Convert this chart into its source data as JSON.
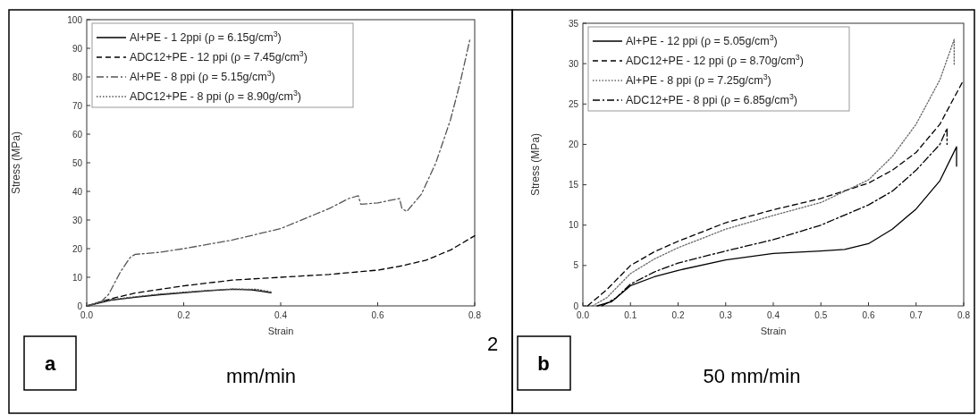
{
  "chart_data": [
    {
      "type": "line",
      "xlabel": "Strain",
      "ylabel": "Stress (MPa)",
      "xlim": [
        0,
        0.8
      ],
      "ylim": [
        0,
        100
      ],
      "xticks": [
        {
          "value": 0,
          "label": "0.0"
        },
        {
          "value": 0.2,
          "label": "0.2"
        },
        {
          "value": 0.4,
          "label": "0.4"
        },
        {
          "value": 0.6,
          "label": "0.6"
        },
        {
          "value": 0.8,
          "label": "0.8"
        }
      ],
      "yticks": [
        0,
        10,
        20,
        30,
        40,
        50,
        60,
        70,
        80,
        90,
        100
      ],
      "grid": false,
      "legend": "top left",
      "marker": "none",
      "annotations": [
        "a",
        "2",
        "mm/min"
      ],
      "series": [
        {
          "name": "Al+PE - 1 2ppi (ρ = 6.15g/cm$^{3}$)",
          "color": "#000000",
          "line_style": "solid",
          "x": [
            0,
            0.05,
            0.1,
            0.15,
            0.2,
            0.25,
            0.3,
            0.34,
            0.36,
            0.38
          ],
          "values": [
            0,
            2,
            3,
            3.9,
            4.6,
            5.3,
            5.8,
            5.6,
            5.1,
            4.6
          ]
        },
        {
          "name": "ADC12+PE - 12 ppi (ρ = 7.45g/cm$^{3}$)",
          "color": "#000000",
          "line_style": "dashed",
          "x": [
            0,
            0.05,
            0.1,
            0.2,
            0.3,
            0.4,
            0.5,
            0.6,
            0.65,
            0.7,
            0.75,
            0.8
          ],
          "values": [
            0,
            2.5,
            4.5,
            7,
            9,
            10,
            11,
            12.5,
            14,
            16,
            19.5,
            24.5
          ]
        },
        {
          "name": "Al+PE - 8 ppi (ρ = 5.15g/cm$^{3}$)",
          "color": "#555555",
          "line_style": "dashdot",
          "x": [
            0,
            0.03,
            0.045,
            0.07,
            0.09,
            0.1,
            0.15,
            0.2,
            0.3,
            0.4,
            0.45,
            0.5,
            0.54,
            0.56,
            0.565,
            0.6,
            0.645,
            0.65,
            0.66,
            0.675,
            0.69,
            0.72,
            0.75,
            0.77,
            0.79
          ],
          "values": [
            0,
            1.5,
            4,
            12,
            17,
            18,
            18.7,
            20,
            23,
            27,
            30.5,
            34,
            37.5,
            38.5,
            35.5,
            36,
            37.5,
            34,
            33,
            36,
            39,
            50,
            65,
            78,
            93
          ]
        },
        {
          "name": "ADC12+PE - 8 ppi (ρ = 8.90g/cm$^{3}$)",
          "color": "#555555",
          "line_style": "dotted",
          "x": [
            0,
            0.05,
            0.1,
            0.15,
            0.2,
            0.25,
            0.3,
            0.35,
            0.38
          ],
          "values": [
            0,
            2.2,
            3.2,
            4.1,
            4.8,
            5.4,
            5.9,
            5.8,
            4.9
          ]
        }
      ]
    },
    {
      "type": "line",
      "xlabel": "Strain",
      "ylabel": "Stress (MPa)",
      "xlim": [
        0,
        0.8
      ],
      "ylim": [
        0,
        35
      ],
      "xticks": [
        {
          "value": 0,
          "label": "0.0"
        },
        0.1,
        0.2,
        0.3,
        0.4,
        0.5,
        0.6,
        0.7,
        0.8
      ],
      "yticks": [
        0,
        5,
        10,
        15,
        20,
        25,
        30,
        35
      ],
      "grid": false,
      "legend": "top left",
      "marker": "none",
      "annotations": [
        "b",
        "50 mm/min"
      ],
      "series": [
        {
          "name": "Al+PE - 12 ppi (ρ = 5.05g/cm$^{3}$)",
          "color": "#000000",
          "line_style": "solid",
          "x": [
            0.03,
            0.06,
            0.1,
            0.15,
            0.2,
            0.3,
            0.4,
            0.5,
            0.55,
            0.6,
            0.65,
            0.7,
            0.75,
            0.785,
            0.785
          ],
          "values": [
            0,
            0.5,
            2.5,
            3.6,
            4.4,
            5.7,
            6.5,
            6.8,
            7,
            7.7,
            9.5,
            12,
            15.5,
            19.7,
            17.3
          ]
        },
        {
          "name": "ADC12+PE - 12 ppi (ρ = 8.70g/cm$^{3}$)",
          "color": "#000000",
          "line_style": "dashed",
          "x": [
            0.01,
            0.05,
            0.1,
            0.15,
            0.2,
            0.3,
            0.4,
            0.5,
            0.6,
            0.65,
            0.7,
            0.75,
            0.8
          ],
          "values": [
            0,
            2,
            5,
            6.7,
            8,
            10.3,
            11.9,
            13.3,
            15.2,
            16.8,
            19,
            22.5,
            28
          ]
        },
        {
          "name": "Al+PE - 8 ppi (ρ = 7.25g/cm$^{3}$)",
          "color": "#666666",
          "line_style": "dotted",
          "x": [
            0.02,
            0.05,
            0.1,
            0.15,
            0.2,
            0.3,
            0.4,
            0.5,
            0.6,
            0.65,
            0.7,
            0.75,
            0.78,
            0.78
          ],
          "values": [
            0,
            1,
            4,
            5.8,
            7.2,
            9.5,
            11.2,
            12.8,
            15.6,
            18.5,
            22.5,
            28,
            33,
            29.8
          ]
        },
        {
          "name": "ADC12+PE - 8 ppi (ρ = 6.85g/cm$^{3}$)",
          "color": "#000000",
          "line_style": "dashdot",
          "x": [
            0.04,
            0.07,
            0.1,
            0.15,
            0.2,
            0.3,
            0.4,
            0.5,
            0.6,
            0.65,
            0.7,
            0.75,
            0.765,
            0.765
          ],
          "values": [
            0,
            1,
            2.7,
            4.2,
            5.3,
            6.8,
            8.2,
            10,
            12.5,
            14.2,
            16.8,
            20,
            22,
            20
          ]
        }
      ]
    }
  ]
}
